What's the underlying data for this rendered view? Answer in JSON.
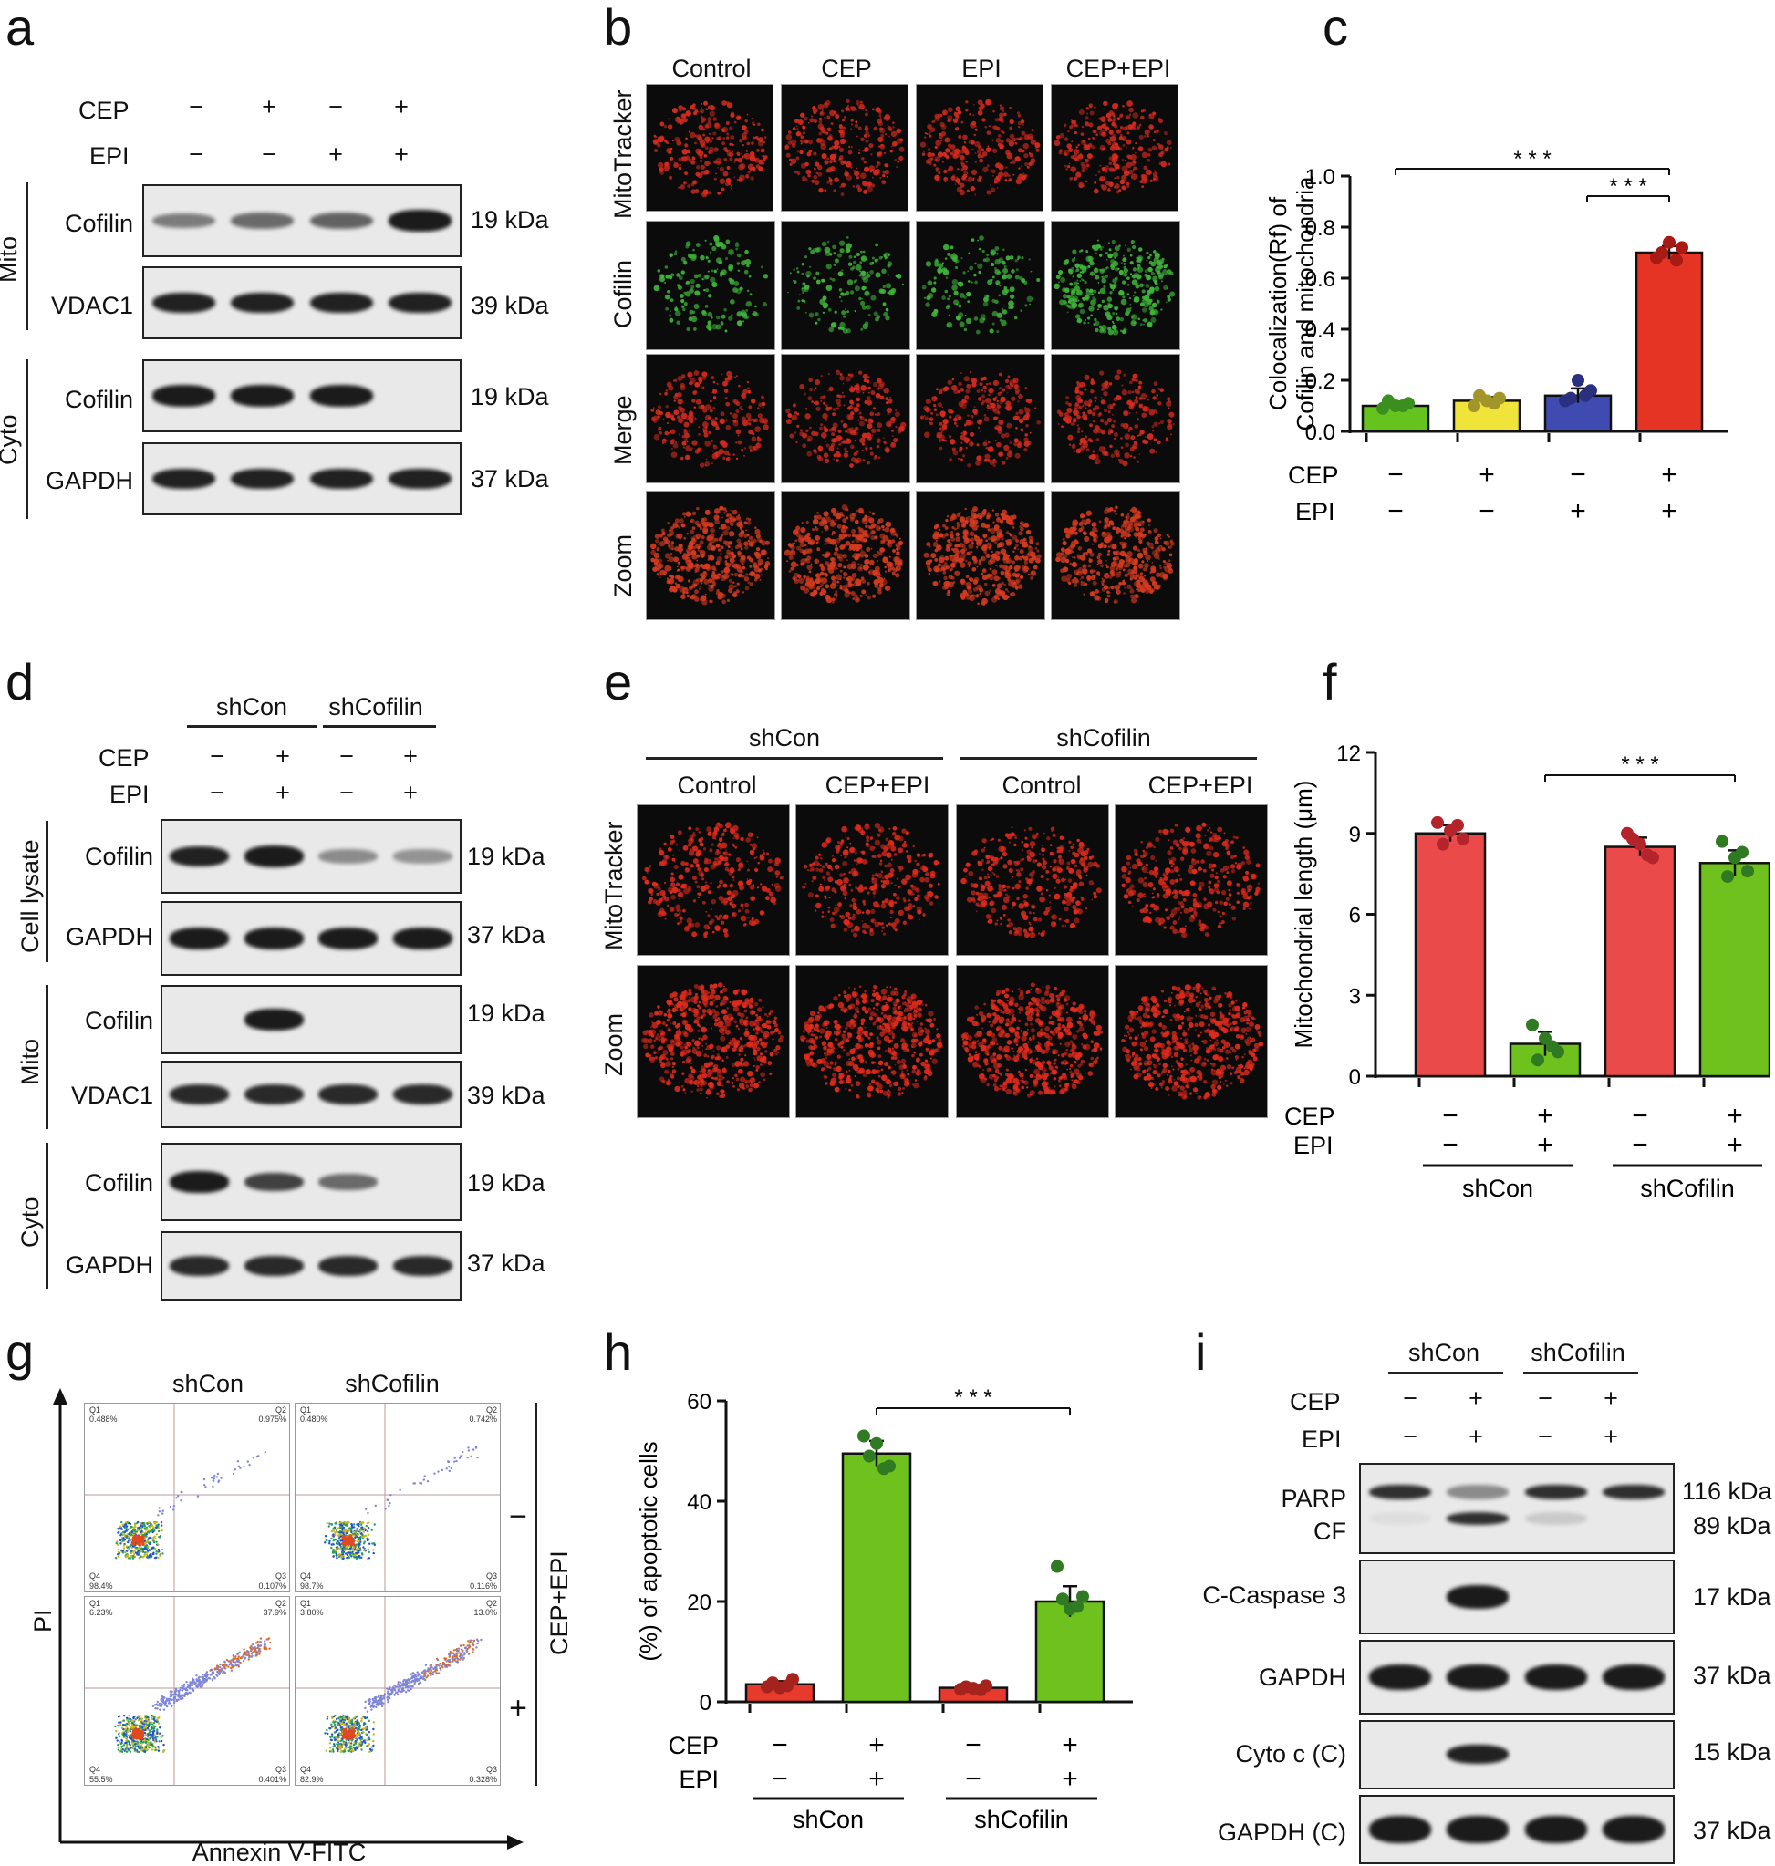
{
  "panels": {
    "a": "a",
    "b": "b",
    "c": "c",
    "d": "d",
    "e": "e",
    "f": "f",
    "g": "g",
    "h": "h",
    "i": "i"
  },
  "common": {
    "cep": "CEP",
    "epi": "EPI",
    "minus": "−",
    "plus": "+",
    "shcon": "shCon",
    "shcofilin": "shCofilin",
    "mito": "Mito",
    "cyto": "Cyto",
    "cell_lysate": "Cell lysate",
    "zoom": "Zoom",
    "mitotracker": "MitoTracker",
    "cofilin": "Cofilin",
    "merge": "Merge",
    "control": "Control",
    "epi_short": "EPI",
    "cep_short": "CEP",
    "cep_epi": "CEP+EPI",
    "sig": "* * *"
  },
  "panel_a": {
    "treatments": {
      "cep": [
        "−",
        "+",
        "−",
        "+"
      ],
      "epi": [
        "−",
        "−",
        "+",
        "+"
      ]
    },
    "blots": [
      {
        "protein": "Cofilin",
        "kda": "19 kDa",
        "intensity": [
          0.35,
          0.45,
          0.5,
          0.95
        ]
      },
      {
        "protein": "VDAC1",
        "kda": "39 kDa",
        "intensity": [
          0.9,
          0.9,
          0.9,
          0.9
        ]
      },
      {
        "protein": "Cofilin",
        "kda": "19 kDa",
        "intensity": [
          0.95,
          0.95,
          0.95,
          0
        ]
      },
      {
        "protein": "GAPDH",
        "kda": "37 kDa",
        "intensity": [
          0.9,
          0.9,
          0.9,
          0.9
        ]
      }
    ]
  },
  "panel_b": {
    "columns": [
      "Control",
      "CEP",
      "EPI",
      "CEP+EPI"
    ],
    "rows": [
      "MitoTracker",
      "Cofilin",
      "Merge",
      "Zoom"
    ]
  },
  "panel_d": {
    "blots": [
      {
        "protein": "Cofilin",
        "kda": "19 kDa",
        "intensity": [
          0.9,
          0.95,
          0.25,
          0.2
        ]
      },
      {
        "protein": "GAPDH",
        "kda": "37 kDa",
        "intensity": [
          0.95,
          0.95,
          0.95,
          0.95
        ]
      },
      {
        "protein": "Cofilin",
        "kda": "19 kDa",
        "intensity": [
          0,
          0.95,
          0,
          0
        ]
      },
      {
        "protein": "VDAC1",
        "kda": "39 kDa",
        "intensity": [
          0.85,
          0.85,
          0.85,
          0.85
        ]
      },
      {
        "protein": "Cofilin",
        "kda": "19 kDa",
        "intensity": [
          0.95,
          0.7,
          0.45,
          0
        ]
      },
      {
        "protein": "GAPDH",
        "kda": "37 kDa",
        "intensity": [
          0.85,
          0.85,
          0.85,
          0.85
        ]
      }
    ]
  },
  "panel_e": {
    "columns": [
      "Control",
      "CEP+EPI",
      "Control",
      "CEP+EPI"
    ],
    "rows": [
      "MitoTracker",
      "Zoom"
    ]
  },
  "panel_g": {
    "xlabel": "Annexin V-FITC",
    "ylabel": "PI",
    "side_label": "CEP+EPI",
    "row_marks": [
      "−",
      "+"
    ],
    "quadrants": [
      {
        "q1": "0.488%",
        "q2": "0.975%",
        "q3": "0.107%",
        "q4": "98.4%"
      },
      {
        "q1": "0.480%",
        "q2": "0.742%",
        "q3": "0.116%",
        "q4": "98.7%"
      },
      {
        "q1": "6.23%",
        "q2": "37.9%",
        "q3": "0.401%",
        "q4": "55.5%"
      },
      {
        "q1": "3.80%",
        "q2": "13.0%",
        "q3": "0.328%",
        "q4": "82.9%"
      }
    ],
    "quad_names": [
      "Q1",
      "Q2",
      "Q3",
      "Q4"
    ]
  },
  "panel_i": {
    "blots": [
      {
        "protein": "PARP",
        "protein2": "CF",
        "kda": "116 kDa",
        "kda2": "89 kDa"
      },
      {
        "protein": "C-Caspase 3",
        "kda": "17 kDa"
      },
      {
        "protein": "GAPDH",
        "kda": "37 kDa"
      },
      {
        "protein": "Cyto c (C)",
        "kda": "15 kDa"
      },
      {
        "protein": "GAPDH (C)",
        "kda": "37 kDa"
      }
    ]
  },
  "chart_data": [
    {
      "type": "bar",
      "panel": "c",
      "ylabel": "Colocalization(Rf) of Cofilin and mitochondria",
      "ylim": [
        0,
        1.0
      ],
      "yticks": [
        "0.0",
        "0.2",
        "0.4",
        "0.6",
        "0.8",
        "1.0"
      ],
      "categories": [
        "CEP− EPI−",
        "CEP+ EPI−",
        "CEP− EPI+",
        "CEP+ EPI+"
      ],
      "values": [
        0.1,
        0.12,
        0.14,
        0.7
      ],
      "points": [
        [
          0.09,
          0.11,
          0.1,
          0.12,
          0.1
        ],
        [
          0.1,
          0.13,
          0.12,
          0.14,
          0.11
        ],
        [
          0.12,
          0.16,
          0.2,
          0.13,
          0.14
        ],
        [
          0.68,
          0.72,
          0.74,
          0.7,
          0.67
        ]
      ],
      "colors": [
        "#66c21d",
        "#f0e43a",
        "#3f4bb0",
        "#e53423"
      ],
      "dot_colors": [
        "#3b8f1e",
        "#a2962a",
        "#2b2f80",
        "#a81a14"
      ],
      "significance": [
        "* * *",
        "* * *"
      ]
    },
    {
      "type": "bar",
      "panel": "f",
      "ylabel": "Mitochondrial length (μm)",
      "ylim": [
        0,
        12
      ],
      "yticks": [
        "0",
        "3",
        "6",
        "9",
        "12"
      ],
      "categories": [
        "shCon CEP− EPI−",
        "shCon CEP+ EPI+",
        "shCofilin CEP− EPI−",
        "shCofilin CEP+ EPI+"
      ],
      "values": [
        9.0,
        1.2,
        8.5,
        7.9
      ],
      "points": [
        [
          9.4,
          8.8,
          9.1,
          8.6,
          9.3
        ],
        [
          1.9,
          0.9,
          1.4,
          0.6,
          1.1
        ],
        [
          9.0,
          8.1,
          8.6,
          8.8,
          8.2
        ],
        [
          8.7,
          7.6,
          8.1,
          7.4,
          8.3
        ]
      ],
      "colors": [
        "#ea4a49",
        "#6fc21d",
        "#ea4a49",
        "#6fc21d"
      ],
      "dot_colors": [
        "#b3252a",
        "#2f7a22",
        "#b3252a",
        "#2f7a22"
      ],
      "significance": [
        "* * *"
      ]
    },
    {
      "type": "bar",
      "panel": "h",
      "ylabel": "(%) of apoptotic cells",
      "ylim": [
        0,
        60
      ],
      "yticks": [
        "0",
        "20",
        "40",
        "60"
      ],
      "categories": [
        "shCon CEP− EPI−",
        "shCon CEP+ EPI+",
        "shCofilin CEP− EPI−",
        "shCofilin CEP+ EPI+"
      ],
      "values": [
        3.5,
        49.5,
        2.8,
        20.0
      ],
      "points": [
        [
          3.0,
          4.5,
          2.8,
          3.8,
          3.2
        ],
        [
          53.0,
          47.0,
          51.5,
          49.0,
          46.5
        ],
        [
          2.5,
          3.2,
          2.7,
          3.0,
          2.4
        ],
        [
          27.0,
          21.0,
          18.5,
          20.5,
          19.0
        ]
      ],
      "colors": [
        "#e8392d",
        "#6fc21d",
        "#e8392d",
        "#6fc21d"
      ],
      "dot_colors": [
        "#a4231d",
        "#2f7a22",
        "#a4231d",
        "#2f7a22"
      ],
      "significance": [
        "* * *"
      ]
    }
  ]
}
